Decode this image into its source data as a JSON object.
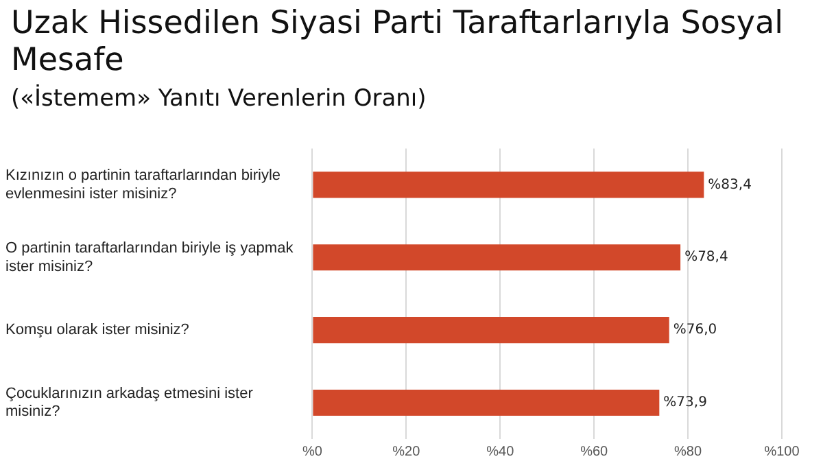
{
  "chart_data": {
    "type": "bar",
    "orientation": "horizontal",
    "title": "Uzak Hissedilen Siyasi Parti Taraftarlarıyla Sosyal Mesafe",
    "subtitle": "(«İstemem» Yanıtı Verenlerin Oranı)",
    "categories": [
      "Kızınızın o partinin taraftarlarından biriyle evlenmesini ister misiniz?",
      "O partinin taraftarlarından biriyle iş yapmak ister misiniz?",
      "Komşu olarak ister misiniz?",
      "Çocuklarınızın arkadaş etmesini ister misiniz?"
    ],
    "values": [
      83.4,
      78.4,
      76.0,
      73.9
    ],
    "value_labels": [
      "%83,4",
      "%78,4",
      "%76,0",
      "%73,9"
    ],
    "color": "#d2482a",
    "xlim": [
      0,
      100
    ],
    "xticks": [
      {
        "value": 0,
        "label": "%0"
      },
      {
        "value": 20,
        "label": "%20"
      },
      {
        "value": 40,
        "label": "%40"
      },
      {
        "value": 60,
        "label": "%60"
      },
      {
        "value": 80,
        "label": "%80"
      },
      {
        "value": 100,
        "label": "%100"
      }
    ],
    "grid": "x",
    "legend": false
  }
}
